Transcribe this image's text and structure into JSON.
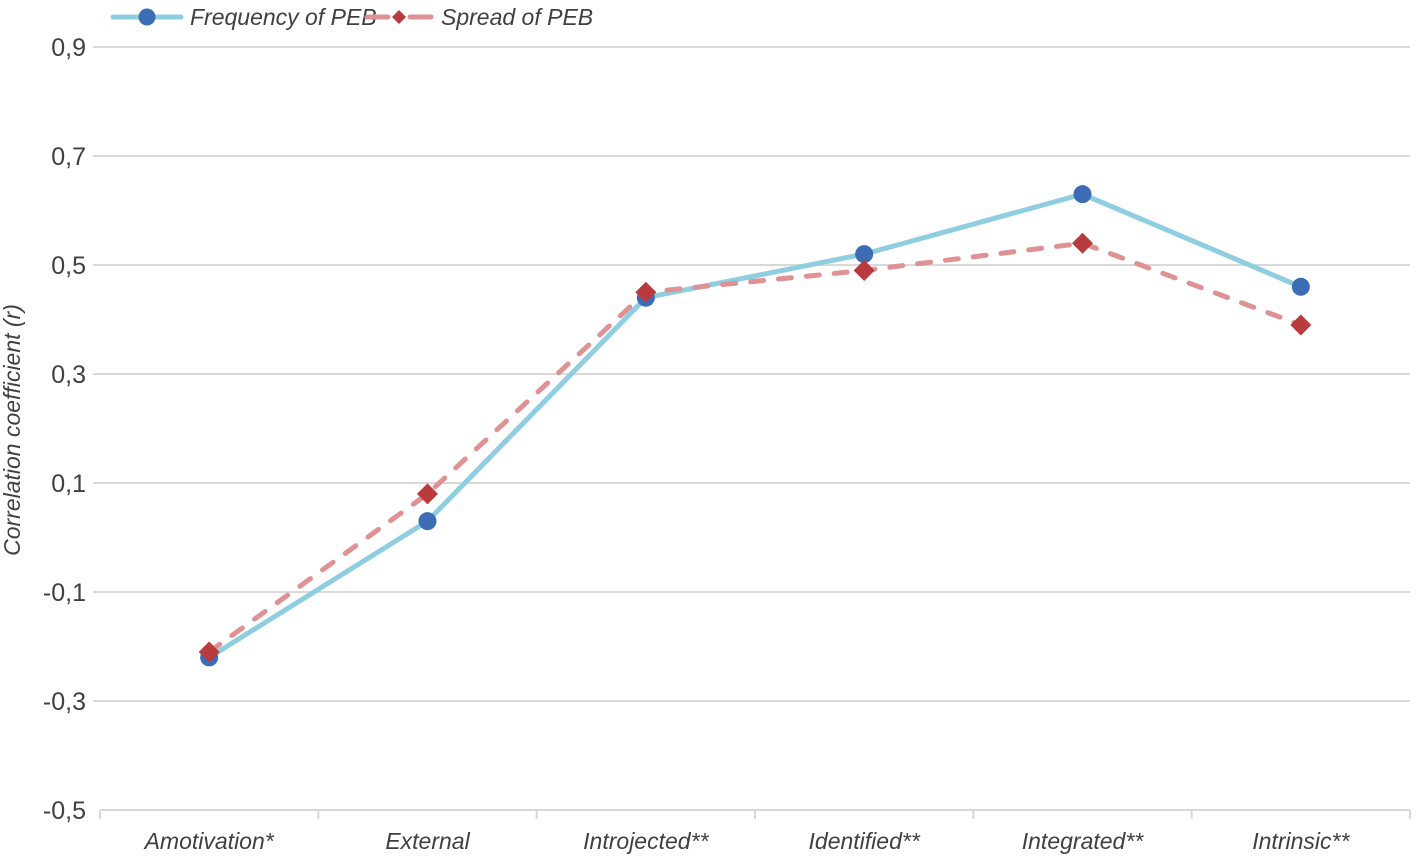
{
  "chart_data": {
    "type": "line",
    "title": "",
    "xlabel": "",
    "ylabel": "Correlation coefficient (r)",
    "categories": [
      "Amotivation*",
      "External",
      "Introjected**",
      "Identified**",
      "Integrated**",
      "Intrinsic**"
    ],
    "series": [
      {
        "name": "Frequency of PEB",
        "values": [
          -0.22,
          0.03,
          0.44,
          0.52,
          0.63,
          0.46
        ],
        "line_color": "#8FCDE0",
        "marker_color": "#3C6CB4",
        "marker": "circle",
        "line_style": "solid"
      },
      {
        "name": "Spread of PEB",
        "values": [
          -0.21,
          0.08,
          0.45,
          0.49,
          0.54,
          0.39
        ],
        "line_color": "#DE9294",
        "marker_color": "#BA3B3E",
        "marker": "diamond",
        "line_style": "dashed"
      }
    ],
    "ylim": [
      -0.5,
      0.9
    ],
    "yticks": [
      0.9,
      0.7,
      0.5,
      0.3,
      0.1,
      -0.1,
      -0.3,
      -0.5
    ],
    "ytick_labels": [
      "0,9",
      "0,7",
      "0,5",
      "0,3",
      "0,1",
      "-0,1",
      "-0,3",
      "-0,5"
    ],
    "grid": true,
    "legend_position": "top-left",
    "colors": {
      "grid": "#D9D9D9",
      "axis": "#D9D9D9",
      "text": "#404040",
      "background": "#FFFFFF"
    }
  }
}
